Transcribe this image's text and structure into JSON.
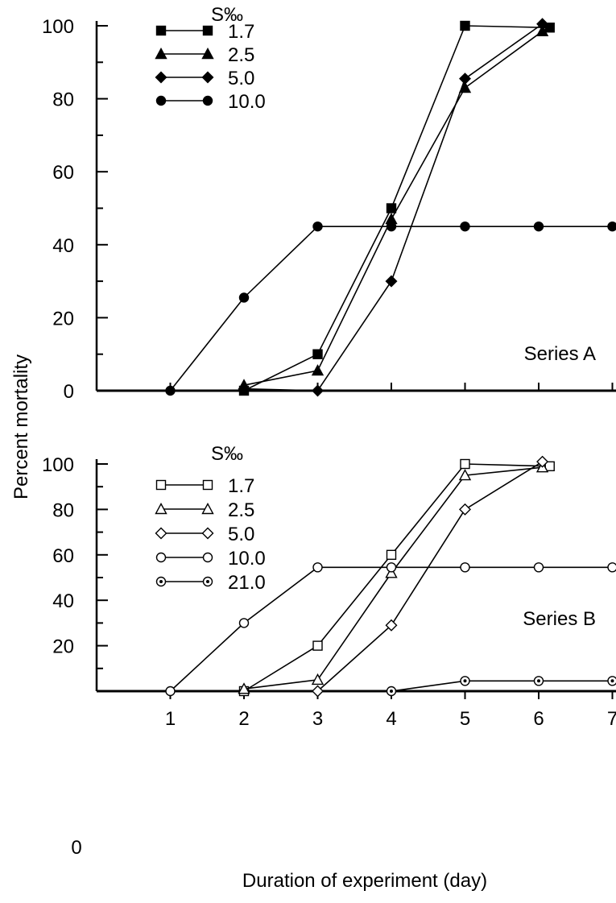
{
  "ylabel": "Percent mortality",
  "xlabel": "Duration of experiment  (day)",
  "chart_data": [
    {
      "type": "line",
      "panel": "Series A",
      "annotation": "Series A",
      "legend_title": "S‰",
      "legend_placement": "top-left",
      "xlim": [
        0,
        7
      ],
      "ylim": [
        0,
        100
      ],
      "y_ticks": [
        "0",
        "20",
        "40",
        "60",
        "80",
        "100"
      ],
      "x_ticks": [
        "1",
        "2",
        "3",
        "4",
        "5",
        "6",
        "7"
      ],
      "series": [
        {
          "name": "1.7",
          "marker": "square-filled",
          "points": [
            [
              2,
              0
            ],
            [
              3,
              10
            ],
            [
              4,
              50
            ],
            [
              5,
              100
            ],
            [
              6.15,
              99.5
            ]
          ]
        },
        {
          "name": "2.5",
          "marker": "triangle-filled",
          "points": [
            [
              2,
              1.5
            ],
            [
              3,
              5.5
            ],
            [
              4,
              47
            ],
            [
              5,
              83
            ],
            [
              6.05,
              98.5
            ]
          ]
        },
        {
          "name": "5.0",
          "marker": "diamond-filled",
          "points": [
            [
              2,
              0.5
            ],
            [
              3,
              0
            ],
            [
              4,
              30
            ],
            [
              5,
              85.5
            ],
            [
              6.05,
              100.5
            ]
          ]
        },
        {
          "name": "10.0",
          "marker": "circle-filled",
          "points": [
            [
              1,
              0
            ],
            [
              2,
              25.5
            ],
            [
              3,
              45
            ],
            [
              4,
              45
            ],
            [
              5,
              45
            ],
            [
              6,
              45
            ],
            [
              7,
              45
            ]
          ]
        }
      ]
    },
    {
      "type": "line",
      "panel": "Series B",
      "annotation": "Series B",
      "legend_title": "S‰",
      "legend_placement": "top-left",
      "xlim": [
        0,
        7
      ],
      "ylim": [
        0,
        100
      ],
      "y_ticks": [
        "20",
        "40",
        "60",
        "80",
        "100"
      ],
      "x_ticks": [
        "1",
        "2",
        "3",
        "4",
        "5",
        "6",
        "7"
      ],
      "origin_label": "0",
      "series": [
        {
          "name": "1.7",
          "marker": "square-open",
          "points": [
            [
              2,
              0
            ],
            [
              3,
              20
            ],
            [
              4,
              60
            ],
            [
              5,
              100
            ],
            [
              6.15,
              99
            ]
          ]
        },
        {
          "name": "2.5",
          "marker": "triangle-open",
          "points": [
            [
              2,
              1
            ],
            [
              3,
              5
            ],
            [
              4,
              52
            ],
            [
              5,
              95
            ],
            [
              6.05,
              98.5
            ]
          ]
        },
        {
          "name": "5.0",
          "marker": "diamond-open",
          "points": [
            [
              3,
              0
            ],
            [
              4,
              29
            ],
            [
              5,
              80
            ],
            [
              6.05,
              101
            ]
          ]
        },
        {
          "name": "10.0",
          "marker": "circle-open",
          "points": [
            [
              1,
              0
            ],
            [
              2,
              30
            ],
            [
              3,
              54.5
            ],
            [
              4,
              54.5
            ],
            [
              5,
              54.5
            ],
            [
              6,
              54.5
            ],
            [
              7,
              54.5
            ]
          ]
        },
        {
          "name": "21.0",
          "marker": "circle-dot",
          "points": [
            [
              4,
              0
            ],
            [
              5,
              4.5
            ],
            [
              6,
              4.5
            ],
            [
              7,
              4.5
            ]
          ]
        }
      ]
    }
  ]
}
